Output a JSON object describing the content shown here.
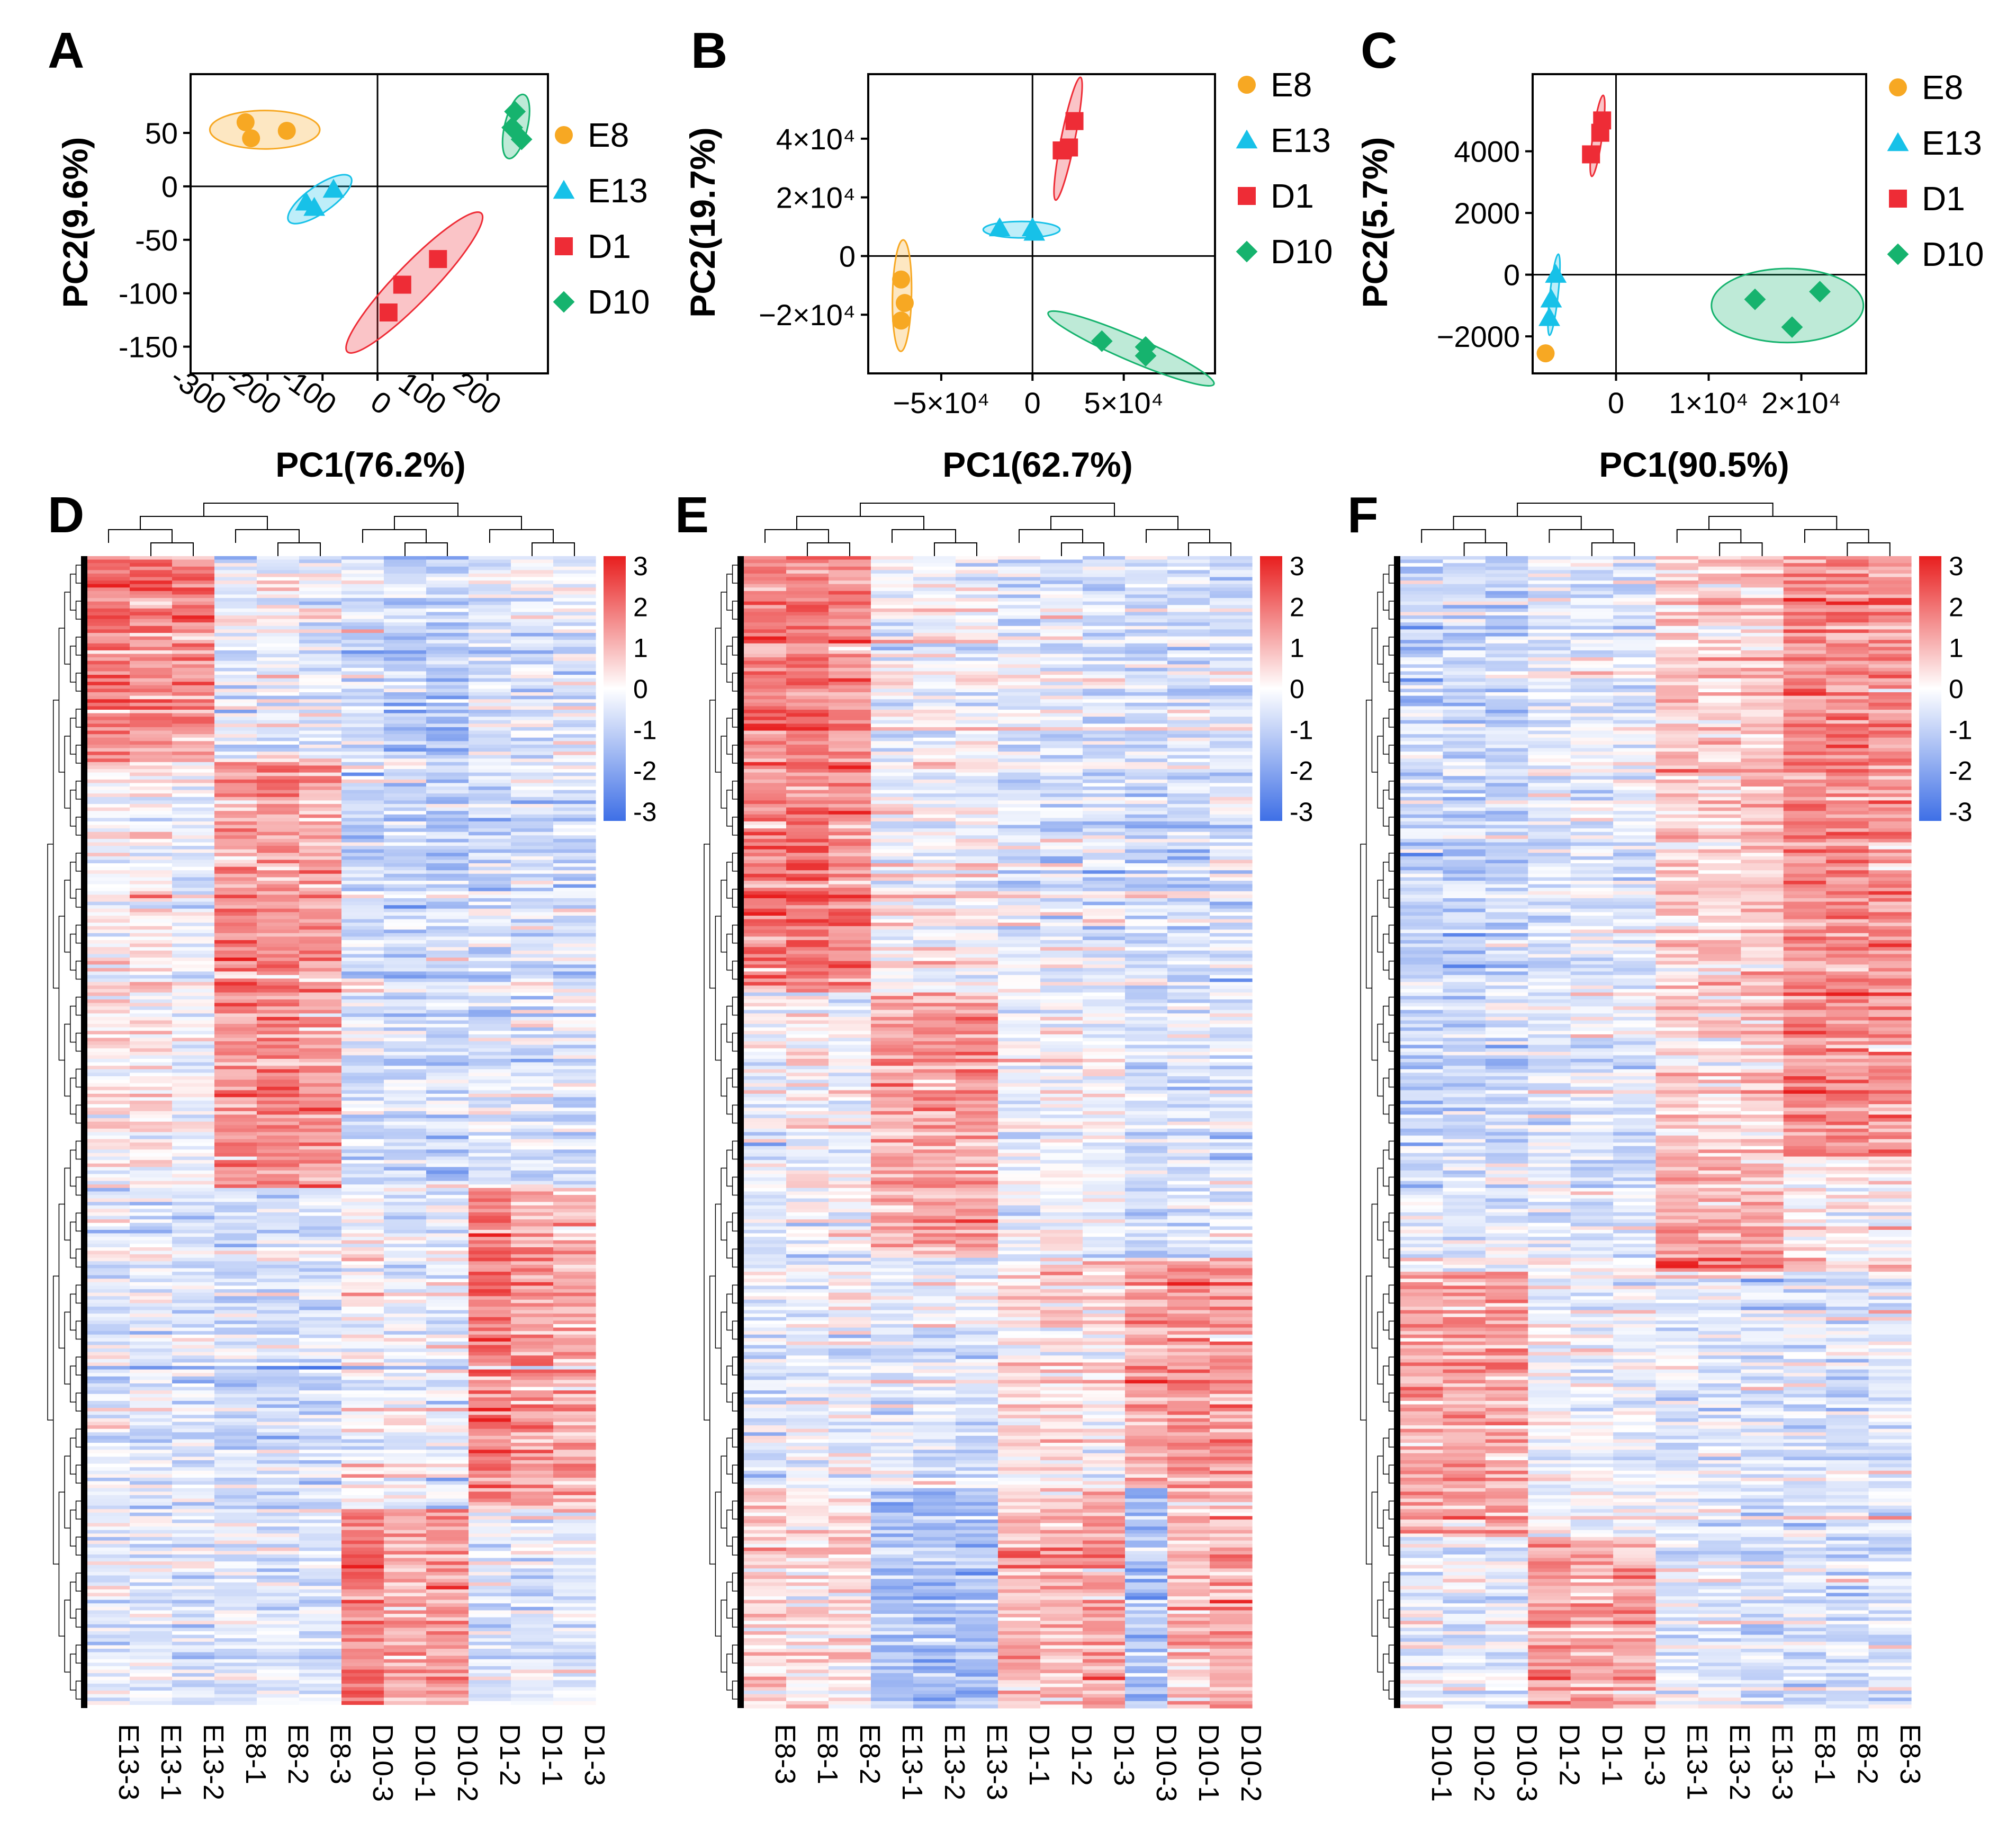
{
  "figure": {
    "colors": {
      "E8": "#F7A823",
      "E13": "#17C1E8",
      "D1": "#EE2C36",
      "D10": "#16B36E",
      "heat_low": "#3E6FE6",
      "heat_mid": "#FFFFFF",
      "heat_high": "#E81E1E"
    }
  },
  "chart_data": [
    {
      "type": "scatter",
      "panel": "A",
      "xlabel": "PC1(76.2%)",
      "ylabel": "PC2(9.6%)",
      "xlim": [
        -340,
        310
      ],
      "ylim": [
        -175,
        105
      ],
      "xticks": [
        -300,
        -200,
        -100,
        0,
        100,
        200
      ],
      "xtick_labels": [
        "-300",
        "-200",
        "-100",
        "0",
        "100",
        "200"
      ],
      "xtick_rotation": 35,
      "yticks": [
        50,
        0,
        -50,
        -100,
        -150
      ],
      "ytick_labels": [
        "50",
        "0",
        "-50",
        "-100",
        "-150"
      ],
      "legend": [
        "E8",
        "E13",
        "D1",
        "D10"
      ],
      "series": [
        {
          "name": "E8",
          "marker": "circle",
          "points": [
            [
              -240,
              60
            ],
            [
              -230,
              45
            ],
            [
              -165,
              52
            ]
          ],
          "ellipse": {
            "cx": -205,
            "cy": 53,
            "rx": 100,
            "ry": 18,
            "angle": 0
          }
        },
        {
          "name": "E13",
          "marker": "triangle",
          "points": [
            [
              -130,
              -15
            ],
            [
              -115,
              -20
            ],
            [
              -80,
              -3
            ]
          ],
          "ellipse": {
            "cx": -105,
            "cy": -12,
            "rx": 60,
            "ry": 13,
            "angle": 20
          }
        },
        {
          "name": "D1",
          "marker": "square",
          "points": [
            [
              20,
              -118
            ],
            [
              45,
              -92
            ],
            [
              110,
              -68
            ]
          ],
          "ellipse": {
            "cx": 67,
            "cy": -90,
            "rx": 138,
            "ry": 19,
            "angle": 28
          }
        },
        {
          "name": "D10",
          "marker": "diamond",
          "points": [
            [
              250,
              70
            ],
            [
              245,
              55
            ],
            [
              262,
              44
            ]
          ],
          "ellipse": {
            "cx": 252,
            "cy": 56,
            "rx": 33,
            "ry": 17,
            "angle": 65
          }
        }
      ]
    },
    {
      "type": "scatter",
      "panel": "B",
      "xlabel": "PC1(62.7%)",
      "ylabel": "PC2(19.7%)",
      "xlim": [
        -90000,
        100000
      ],
      "ylim": [
        -40000,
        62000
      ],
      "xticks": [
        -50000,
        0,
        50000
      ],
      "xtick_labels": [
        "−5×10⁴",
        "0",
        "5×10⁴"
      ],
      "yticks": [
        40000,
        20000,
        0,
        -20000
      ],
      "ytick_labels": [
        "4×10⁴",
        "2×10⁴",
        "0",
        "−2×10⁴"
      ],
      "legend": [
        "E8",
        "E13",
        "D1",
        "D10"
      ],
      "series": [
        {
          "name": "E8",
          "marker": "circle",
          "points": [
            [
              -72000,
              -8000
            ],
            [
              -70000,
              -16000
            ],
            [
              -72000,
              -22000
            ]
          ],
          "ellipse": {
            "cx": -71500,
            "cy": -13500,
            "rx": 19000,
            "ry": 5200,
            "angle": 88
          }
        },
        {
          "name": "E13",
          "marker": "triangle",
          "points": [
            [
              -18000,
              9500
            ],
            [
              0,
              9500
            ],
            [
              1000,
              8000
            ]
          ],
          "ellipse": {
            "cx": -6000,
            "cy": 9000,
            "rx": 21000,
            "ry": 2800,
            "angle": 0
          }
        },
        {
          "name": "D1",
          "marker": "square",
          "points": [
            [
              16000,
              36000
            ],
            [
              20000,
              37000
            ],
            [
              23000,
              46000
            ]
          ],
          "ellipse": {
            "cx": 19500,
            "cy": 40000,
            "rx": 22000,
            "ry": 3500,
            "angle": 72
          }
        },
        {
          "name": "D10",
          "marker": "diamond",
          "points": [
            [
              38000,
              -29000
            ],
            [
              62000,
              -31000
            ],
            [
              62000,
              -34000
            ]
          ],
          "ellipse": {
            "cx": 54000,
            "cy": -31500,
            "rx": 47000,
            "ry": 4200,
            "angle": -15
          }
        }
      ]
    },
    {
      "type": "scatter",
      "panel": "C",
      "xlabel": "PC1(90.5%)",
      "ylabel": "PC2(5.7%)",
      "xlim": [
        -9000,
        27000
      ],
      "ylim": [
        -3200,
        6500
      ],
      "xticks": [
        0,
        10000,
        20000
      ],
      "xtick_labels": [
        "0",
        "1×10⁴",
        "2×10⁴"
      ],
      "yticks": [
        4000,
        2000,
        0,
        -2000
      ],
      "ytick_labels": [
        "4000",
        "2000",
        "0",
        "−2000"
      ],
      "legend": [
        "E8",
        "E13",
        "D1",
        "D10"
      ],
      "series": [
        {
          "name": "E8",
          "marker": "circle",
          "points": [
            [
              -7600,
              -2550
            ]
          ],
          "ellipse": null
        },
        {
          "name": "E13",
          "marker": "triangle",
          "points": [
            [
              -6500,
              0
            ],
            [
              -7000,
              -800
            ],
            [
              -7200,
              -1400
            ]
          ],
          "ellipse": {
            "cx": -6700,
            "cy": -650,
            "rx": 1400,
            "ry": 300,
            "angle": 70
          }
        },
        {
          "name": "D1",
          "marker": "square",
          "points": [
            [
              -2700,
              3900
            ],
            [
              -1700,
              4600
            ],
            [
              -1500,
              5000
            ]
          ],
          "ellipse": {
            "cx": -2000,
            "cy": 4500,
            "rx": 1450,
            "ry": 300,
            "angle": 65
          }
        },
        {
          "name": "D10",
          "marker": "diamond",
          "points": [
            [
              15000,
              -800
            ],
            [
              22000,
              -550
            ],
            [
              19000,
              -1700
            ]
          ],
          "ellipse": {
            "cx": 18500,
            "cy": -1000,
            "rx": 8200,
            "ry": 1200,
            "angle": 0
          }
        }
      ]
    },
    {
      "type": "heatmap",
      "panel": "D",
      "columns": [
        "E13-3",
        "E13-1",
        "E13-2",
        "E8-1",
        "E8-2",
        "E8-3",
        "D10-3",
        "D10-1",
        "D10-2",
        "D1-2",
        "D1-1",
        "D1-3"
      ],
      "scale_ticks": [
        "3",
        "2",
        "1",
        "0",
        "-1",
        "-2",
        "-3"
      ],
      "vmin": -3,
      "vmax": 3,
      "blocks": [
        {
          "rows": 0.18,
          "means": [
            1.8,
            1.6,
            1.5,
            -0.3,
            -0.2,
            -0.3,
            -0.6,
            -1.0,
            -1.0,
            -0.6,
            -0.4,
            -0.4
          ]
        },
        {
          "rows": 0.37,
          "means": [
            0.1,
            0.2,
            -0.2,
            1.4,
            1.5,
            1.3,
            -0.6,
            -0.8,
            -0.8,
            -0.6,
            -0.5,
            -0.6
          ]
        },
        {
          "rows": 0.28,
          "means": [
            -0.4,
            -0.4,
            -0.5,
            -0.6,
            -0.6,
            -0.6,
            0.0,
            -0.3,
            -0.3,
            1.7,
            1.3,
            1.0
          ]
        },
        {
          "rows": 0.17,
          "means": [
            -0.4,
            -0.4,
            -0.5,
            -0.5,
            -0.5,
            -0.5,
            1.7,
            1.1,
            1.3,
            -0.5,
            -0.4,
            -0.5
          ]
        }
      ],
      "dendrogram": "present"
    },
    {
      "type": "heatmap",
      "panel": "E",
      "columns": [
        "E8-3",
        "E8-1",
        "E8-2",
        "E13-1",
        "E13-2",
        "E13-3",
        "D1-1",
        "D1-2",
        "D1-3",
        "D10-3",
        "D10-1",
        "D10-2"
      ],
      "scale_ticks": [
        "3",
        "2",
        "1",
        "0",
        "-1",
        "-2",
        "-3"
      ],
      "vmin": -3,
      "vmax": 3,
      "blocks": [
        {
          "rows": 0.38,
          "means": [
            1.7,
            1.8,
            1.5,
            -0.1,
            -0.1,
            0.0,
            -0.4,
            -0.4,
            -0.5,
            -0.6,
            -0.6,
            -0.6
          ]
        },
        {
          "rows": 0.23,
          "means": [
            -0.3,
            0.1,
            -0.1,
            1.2,
            1.2,
            1.3,
            -0.3,
            -0.1,
            -0.2,
            -0.6,
            -0.6,
            -0.5
          ]
        },
        {
          "rows": 0.2,
          "means": [
            -0.4,
            -0.3,
            -0.3,
            -0.4,
            -0.4,
            -0.4,
            0.4,
            0.5,
            0.3,
            1.2,
            1.4,
            1.3
          ]
        },
        {
          "rows": 0.19,
          "means": [
            0.4,
            0.3,
            0.3,
            -1.3,
            -1.3,
            -1.3,
            0.8,
            0.9,
            1.2,
            -1.3,
            0.9,
            1.0
          ]
        }
      ],
      "dendrogram": "present"
    },
    {
      "type": "heatmap",
      "panel": "F",
      "columns": [
        "D10-1",
        "D10-2",
        "D10-3",
        "D1-2",
        "D1-1",
        "D1-3",
        "E13-1",
        "E13-2",
        "E13-3",
        "E8-1",
        "E8-2",
        "E8-3"
      ],
      "scale_ticks": [
        "3",
        "2",
        "1",
        "0",
        "-1",
        "-2",
        "-3"
      ],
      "vmin": -3,
      "vmax": 3,
      "blocks": [
        {
          "rows": 0.52,
          "means": [
            -0.8,
            -0.8,
            -0.8,
            -0.4,
            -0.4,
            -0.4,
            0.6,
            0.5,
            0.7,
            1.6,
            1.5,
            1.4
          ]
        },
        {
          "rows": 0.1,
          "means": [
            -0.5,
            -0.5,
            -0.5,
            -0.4,
            -0.5,
            -0.4,
            1.3,
            1.2,
            1.2,
            0.3,
            0.2,
            0.2
          ]
        },
        {
          "rows": 0.23,
          "means": [
            1.1,
            1.2,
            1.2,
            -0.2,
            -0.2,
            -0.2,
            -0.5,
            -0.4,
            -0.5,
            -0.5,
            -0.5,
            -0.5
          ]
        },
        {
          "rows": 0.15,
          "means": [
            -0.3,
            -0.3,
            -0.3,
            1.4,
            1.2,
            1.2,
            -0.5,
            -0.5,
            -0.5,
            -0.6,
            -0.6,
            -0.6
          ]
        }
      ],
      "dendrogram": "present"
    }
  ],
  "panel_labels": [
    "A",
    "B",
    "C",
    "D",
    "E",
    "F"
  ]
}
